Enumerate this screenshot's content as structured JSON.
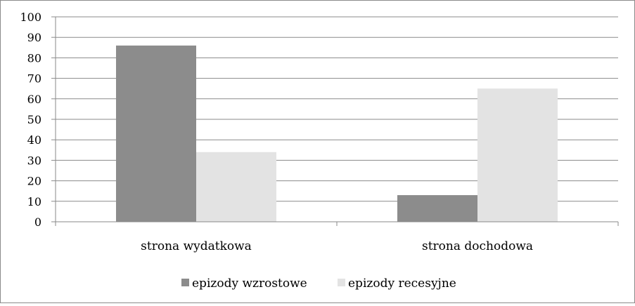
{
  "chart_data": {
    "type": "bar",
    "categories": [
      "strona wydatkowa",
      "strona dochodowa"
    ],
    "series": [
      {
        "name": "epizody wzrostowe",
        "values": [
          86,
          13
        ],
        "color": "#8c8c8c"
      },
      {
        "name": "epizody recesyjne",
        "values": [
          34,
          65
        ],
        "color": "#e3e3e3"
      }
    ],
    "ylim": [
      0,
      100
    ],
    "yticks": [
      0,
      10,
      20,
      30,
      40,
      50,
      60,
      70,
      80,
      90,
      100
    ],
    "grid": true,
    "legend_position": "bottom",
    "title": "",
    "xlabel": "",
    "ylabel": ""
  }
}
